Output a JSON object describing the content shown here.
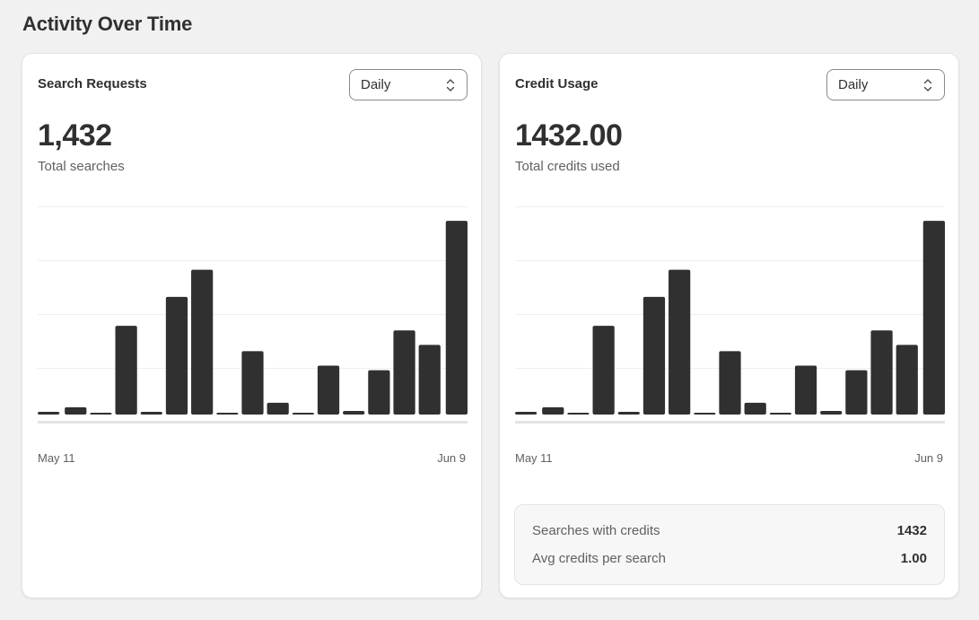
{
  "page": {
    "title": "Activity Over Time"
  },
  "cards": [
    {
      "title": "Search Requests",
      "period_select": {
        "value": "Daily"
      },
      "total": "1,432",
      "total_label": "Total searches",
      "x_start": "May 11",
      "x_end": "Jun 9"
    },
    {
      "title": "Credit Usage",
      "period_select": {
        "value": "Daily"
      },
      "total": "1432.00",
      "total_label": "Total credits used",
      "x_start": "May 11",
      "x_end": "Jun 9",
      "stats": [
        {
          "label": "Searches with credits",
          "value": "1432"
        },
        {
          "label": "Avg credits per search",
          "value": "1.00"
        }
      ]
    }
  ],
  "colors": {
    "bar": "#303030",
    "gridline": "#efefef",
    "baseline": "#e3e3e3"
  },
  "chart_data": [
    {
      "type": "bar",
      "title": "Search Requests",
      "categories": [
        "May 11",
        "",
        "",
        "",
        "",
        "",
        "",
        "",
        "",
        "",
        "",
        "",
        "",
        "",
        "",
        "",
        "Jun 9"
      ],
      "values": [
        3,
        8,
        2,
        98,
        3,
        130,
        160,
        2,
        70,
        13,
        2,
        54,
        4,
        49,
        93,
        77,
        214
      ],
      "ylim": [
        0,
        230
      ],
      "grid": true
    },
    {
      "type": "bar",
      "title": "Credit Usage",
      "categories": [
        "May 11",
        "",
        "",
        "",
        "",
        "",
        "",
        "",
        "",
        "",
        "",
        "",
        "",
        "",
        "",
        "",
        "Jun 9"
      ],
      "values": [
        3,
        8,
        2,
        98,
        3,
        130,
        160,
        2,
        70,
        13,
        2,
        54,
        4,
        49,
        93,
        77,
        214
      ],
      "ylim": [
        0,
        230
      ],
      "grid": true
    }
  ]
}
